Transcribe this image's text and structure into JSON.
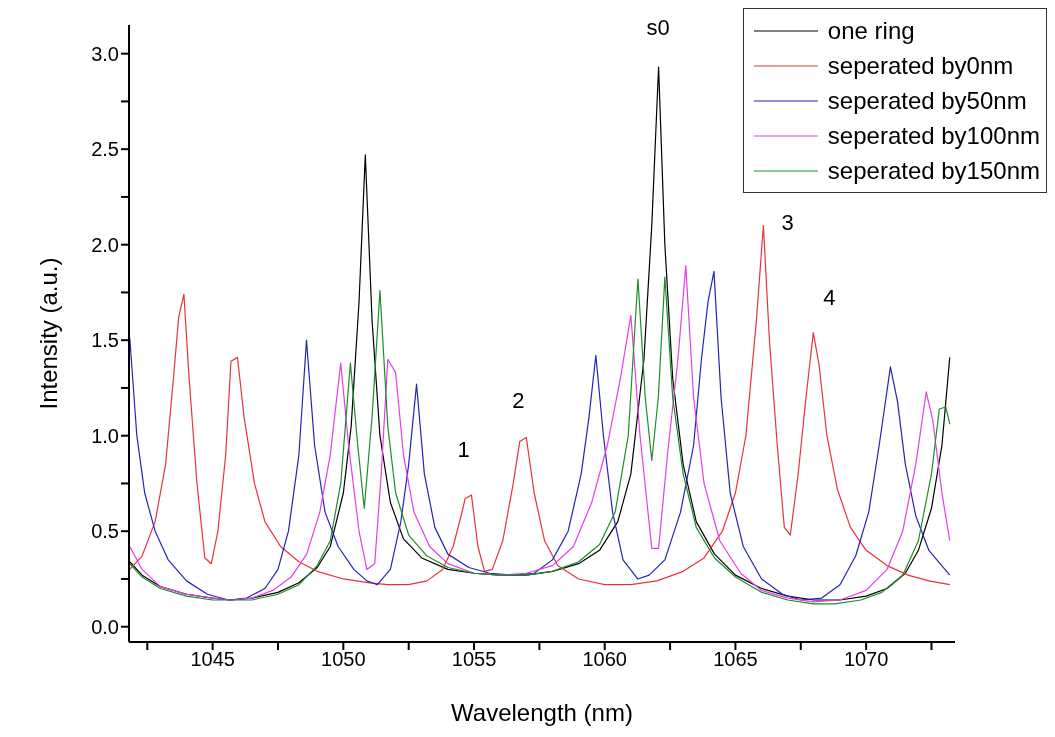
{
  "chart_data": {
    "type": "line",
    "xlabel": "Wavelength (nm)",
    "ylabel": "Intensity (a.u.)",
    "xlim": [
      1041.8,
      1073.4
    ],
    "xticks": [
      {
        "value": 1042.5,
        "label": null
      },
      1045,
      {
        "value": 1047.5,
        "label": null
      },
      1050,
      {
        "value": 1052.5,
        "label": null
      },
      1055,
      {
        "value": 1057.5,
        "label": null
      },
      1060,
      {
        "value": 1062.5,
        "label": null
      },
      1065,
      {
        "value": 1067.5,
        "label": null
      },
      1070,
      {
        "value": 1072.5,
        "label": null
      }
    ],
    "ylim": [
      -0.08,
      3.15
    ],
    "yticks": [
      {
        "value": 0,
        "label": "0.0"
      },
      {
        "value": 0.25,
        "label": null
      },
      0.5,
      {
        "value": 0.75,
        "label": null
      },
      {
        "value": 1,
        "label": "1.0"
      },
      {
        "value": 1.25,
        "label": null
      },
      1.5,
      {
        "value": 1.75,
        "label": null
      },
      {
        "value": 2,
        "label": "2.0"
      },
      {
        "value": 2.25,
        "label": null
      },
      2.5,
      {
        "value": 2.75,
        "label": null
      },
      {
        "value": 3,
        "label": "3.0"
      }
    ],
    "grid": false,
    "legend": "top right",
    "marker": "none",
    "line_style": "solid",
    "annotations": [
      {
        "text": "s0",
        "x": 1062.06,
        "y": 2.93
      },
      {
        "text": "1",
        "x": 1054.9,
        "y": 0.69
      },
      {
        "text": "2",
        "x": 1057.0,
        "y": 0.99
      },
      {
        "text": "3",
        "x": 1066.07,
        "y": 2.1
      },
      {
        "text": "4",
        "x": 1067.98,
        "y": 1.54
      }
    ],
    "series": [
      {
        "name": "one ring",
        "color": "#000000",
        "x": [
          1041.83,
          1042.3,
          1043,
          1044,
          1045,
          1045.7,
          1046.5,
          1047.5,
          1048.3,
          1049,
          1049.5,
          1050,
          1050.3,
          1050.6,
          1050.84,
          1051.1,
          1051.4,
          1051.8,
          1052.3,
          1053,
          1054,
          1055,
          1056,
          1057,
          1058,
          1059,
          1059.8,
          1060.5,
          1061,
          1061.5,
          1061.8,
          1062.06,
          1062.3,
          1062.6,
          1063,
          1063.5,
          1064.2,
          1065,
          1066,
          1067,
          1068,
          1069,
          1070,
          1070.8,
          1071.5,
          1072,
          1072.5,
          1072.9,
          1073.2
        ],
        "values": [
          0.34,
          0.27,
          0.21,
          0.17,
          0.15,
          0.14,
          0.15,
          0.18,
          0.23,
          0.31,
          0.42,
          0.7,
          1.05,
          1.7,
          2.47,
          1.6,
          1.0,
          0.65,
          0.46,
          0.36,
          0.3,
          0.28,
          0.27,
          0.27,
          0.29,
          0.33,
          0.4,
          0.55,
          0.8,
          1.4,
          2.1,
          2.93,
          2.0,
          1.3,
          0.85,
          0.55,
          0.38,
          0.27,
          0.2,
          0.16,
          0.14,
          0.14,
          0.16,
          0.2,
          0.28,
          0.4,
          0.62,
          0.95,
          1.41
        ]
      },
      {
        "name": "seperated by0nm",
        "color": "#e8333a",
        "x": [
          1041.83,
          1042.3,
          1042.8,
          1043.2,
          1043.5,
          1043.7,
          1043.9,
          1044.1,
          1044.4,
          1044.7,
          1044.95,
          1045.2,
          1045.5,
          1045.7,
          1045.95,
          1046.2,
          1046.6,
          1047,
          1047.6,
          1048.3,
          1049,
          1050,
          1051,
          1051.7,
          1052.5,
          1053.2,
          1053.8,
          1054.2,
          1054.45,
          1054.66,
          1054.9,
          1055.15,
          1055.4,
          1055.7,
          1056.1,
          1056.5,
          1056.75,
          1057.0,
          1057.3,
          1057.7,
          1058.2,
          1059,
          1060,
          1061,
          1062,
          1063,
          1063.8,
          1064.5,
          1065,
          1065.4,
          1065.8,
          1066.07,
          1066.3,
          1066.6,
          1066.87,
          1067.1,
          1067.4,
          1067.7,
          1067.98,
          1068.2,
          1068.5,
          1068.9,
          1069.4,
          1070,
          1070.8,
          1071.6,
          1072.4,
          1073.2
        ],
        "values": [
          0.3,
          0.37,
          0.55,
          0.85,
          1.3,
          1.62,
          1.74,
          1.3,
          0.75,
          0.36,
          0.33,
          0.5,
          0.9,
          1.39,
          1.41,
          1.1,
          0.75,
          0.55,
          0.42,
          0.34,
          0.29,
          0.25,
          0.23,
          0.22,
          0.22,
          0.24,
          0.3,
          0.42,
          0.55,
          0.67,
          0.69,
          0.42,
          0.29,
          0.3,
          0.45,
          0.75,
          0.97,
          0.99,
          0.7,
          0.45,
          0.32,
          0.25,
          0.22,
          0.22,
          0.24,
          0.29,
          0.36,
          0.5,
          0.7,
          1.0,
          1.6,
          2.1,
          1.5,
          0.95,
          0.52,
          0.48,
          0.8,
          1.2,
          1.54,
          1.37,
          1.0,
          0.72,
          0.52,
          0.4,
          0.32,
          0.27,
          0.24,
          0.22
        ]
      },
      {
        "name": "seperated by50nm",
        "color": "#2424b8",
        "x": [
          1041.83,
          1042.1,
          1042.4,
          1042.8,
          1043.3,
          1044,
          1044.8,
          1045.6,
          1046.3,
          1047,
          1047.5,
          1047.9,
          1048.3,
          1048.59,
          1048.9,
          1049.3,
          1049.8,
          1050.4,
          1050.9,
          1051.3,
          1051.8,
          1052.2,
          1052.5,
          1052.8,
          1053.1,
          1053.5,
          1054,
          1054.8,
          1055.6,
          1056.5,
          1057.3,
          1058,
          1058.6,
          1059.1,
          1059.4,
          1059.66,
          1059.95,
          1060.3,
          1060.7,
          1061.26,
          1061.7,
          1062.3,
          1062.9,
          1063.4,
          1063.7,
          1063.95,
          1064.18,
          1064.45,
          1064.8,
          1065.3,
          1066,
          1066.8,
          1067.5,
          1068.3,
          1069,
          1069.6,
          1070.1,
          1070.5,
          1070.93,
          1071.2,
          1071.5,
          1071.9,
          1072.4,
          1073.2
        ],
        "values": [
          1.51,
          1.0,
          0.7,
          0.5,
          0.35,
          0.24,
          0.17,
          0.14,
          0.15,
          0.2,
          0.3,
          0.5,
          0.9,
          1.5,
          0.95,
          0.6,
          0.42,
          0.3,
          0.24,
          0.22,
          0.3,
          0.55,
          0.85,
          1.27,
          0.8,
          0.52,
          0.38,
          0.31,
          0.28,
          0.27,
          0.28,
          0.35,
          0.5,
          0.8,
          1.1,
          1.42,
          1.0,
          0.6,
          0.35,
          0.25,
          0.27,
          0.35,
          0.6,
          0.95,
          1.4,
          1.7,
          1.86,
          1.2,
          0.7,
          0.42,
          0.25,
          0.17,
          0.14,
          0.15,
          0.22,
          0.37,
          0.6,
          0.95,
          1.36,
          1.18,
          0.85,
          0.58,
          0.4,
          0.27
        ]
      },
      {
        "name": "seperated by100nm",
        "color": "#e83ce8",
        "x": [
          1041.83,
          1042.3,
          1043,
          1044,
          1045,
          1045.7,
          1046.5,
          1047.3,
          1048,
          1048.6,
          1049.1,
          1049.5,
          1049.9,
          1050.2,
          1050.6,
          1050.9,
          1051.2,
          1051.45,
          1051.7,
          1052.0,
          1052.3,
          1052.7,
          1053.3,
          1054,
          1055,
          1056,
          1057,
          1058,
          1058.8,
          1059.5,
          1060.1,
          1060.6,
          1061.0,
          1061.35,
          1061.8,
          1062.06,
          1062.4,
          1062.8,
          1063.1,
          1063.4,
          1063.8,
          1064.4,
          1065.2,
          1066,
          1067,
          1068,
          1069,
          1070,
          1070.8,
          1071.4,
          1071.9,
          1072.3,
          1072.55,
          1072.9,
          1073.2
        ],
        "values": [
          0.42,
          0.3,
          0.21,
          0.17,
          0.15,
          0.14,
          0.15,
          0.19,
          0.26,
          0.38,
          0.6,
          0.9,
          1.38,
          0.95,
          0.5,
          0.3,
          0.33,
          0.8,
          1.4,
          1.33,
          0.9,
          0.6,
          0.42,
          0.33,
          0.28,
          0.27,
          0.28,
          0.32,
          0.42,
          0.65,
          0.95,
          1.3,
          1.63,
          1.0,
          0.41,
          0.41,
          0.9,
          1.4,
          1.89,
          1.2,
          0.75,
          0.45,
          0.28,
          0.19,
          0.15,
          0.13,
          0.14,
          0.19,
          0.3,
          0.5,
          0.85,
          1.23,
          1.08,
          0.7,
          0.45
        ]
      },
      {
        "name": "seperated by150nm",
        "color": "#1e8c2a",
        "x": [
          1041.83,
          1042.3,
          1043,
          1044,
          1045,
          1045.7,
          1046.5,
          1047.5,
          1048.3,
          1049,
          1049.5,
          1049.9,
          1050.27,
          1050.55,
          1050.8,
          1051.1,
          1051.4,
          1051.7,
          1052,
          1052.5,
          1053.2,
          1054,
          1055,
          1056,
          1057,
          1058,
          1059,
          1059.8,
          1060.4,
          1060.9,
          1061.27,
          1061.55,
          1061.8,
          1062.05,
          1062.3,
          1062.6,
          1063,
          1063.5,
          1064.2,
          1065,
          1066,
          1067,
          1068,
          1068.8,
          1069.8,
          1070.6,
          1071.4,
          1072,
          1072.5,
          1072.8,
          1073.05,
          1073.2
        ],
        "values": [
          0.33,
          0.26,
          0.2,
          0.16,
          0.14,
          0.14,
          0.14,
          0.17,
          0.22,
          0.32,
          0.45,
          0.75,
          1.38,
          0.95,
          0.62,
          1.1,
          1.76,
          1.05,
          0.7,
          0.48,
          0.37,
          0.31,
          0.28,
          0.27,
          0.27,
          0.29,
          0.34,
          0.43,
          0.6,
          1.0,
          1.82,
          1.2,
          0.87,
          1.2,
          1.83,
          1.2,
          0.8,
          0.52,
          0.36,
          0.26,
          0.18,
          0.14,
          0.12,
          0.12,
          0.14,
          0.18,
          0.27,
          0.45,
          0.8,
          1.14,
          1.15,
          1.06
        ]
      }
    ]
  }
}
